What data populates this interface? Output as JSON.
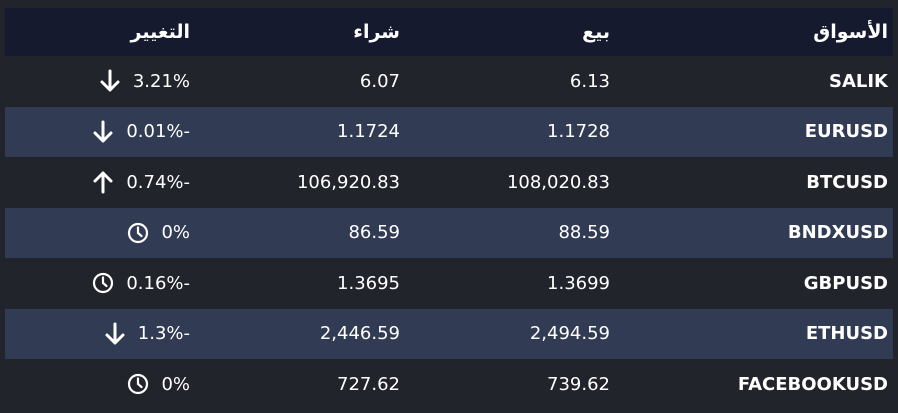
{
  "colors": {
    "green": "#22bb22",
    "red": "#ff5252",
    "header_bg": "#161a2e",
    "alt_row_bg": "#313b53",
    "page_bg": "#22242b"
  },
  "headers": {
    "market": "الأسواق",
    "sell": "بيع",
    "buy": "شراء",
    "change": "التغيير"
  },
  "rows": [
    {
      "market": "SALIK",
      "sell": "6.13",
      "buy": "6.07",
      "change": "3.21%",
      "change_color": "green",
      "icon": "arrow-down-icon",
      "icon_color": "red"
    },
    {
      "market": "EURUSD",
      "sell": "1.1728",
      "buy": "1.1724",
      "change": "0.01%-",
      "change_color": "green",
      "icon": "arrow-down-icon",
      "icon_color": "red"
    },
    {
      "market": "BTCUSD",
      "sell": "108,020.83",
      "buy": "106,920.83",
      "change": "0.74%-",
      "change_color": "red",
      "icon": "arrow-up-icon",
      "icon_color": "green"
    },
    {
      "market": "BNDXUSD",
      "sell": "88.59",
      "buy": "86.59",
      "change": "0%",
      "change_color": "neutral",
      "icon": "clock-icon",
      "icon_color": "neutral"
    },
    {
      "market": "GBPUSD",
      "sell": "1.3699",
      "buy": "1.3695",
      "change": "0.16%-",
      "change_color": "neutral",
      "icon": "clock-icon",
      "icon_color": "neutral"
    },
    {
      "market": "ETHUSD",
      "sell": "2,494.59",
      "buy": "2,446.59",
      "change": "1.3%-",
      "change_color": "green",
      "icon": "arrow-down-icon",
      "icon_color": "red"
    },
    {
      "market": "FACEBOOKUSD",
      "sell": "739.62",
      "buy": "727.62",
      "change": "0%",
      "change_color": "neutral",
      "icon": "clock-icon",
      "icon_color": "neutral"
    }
  ]
}
